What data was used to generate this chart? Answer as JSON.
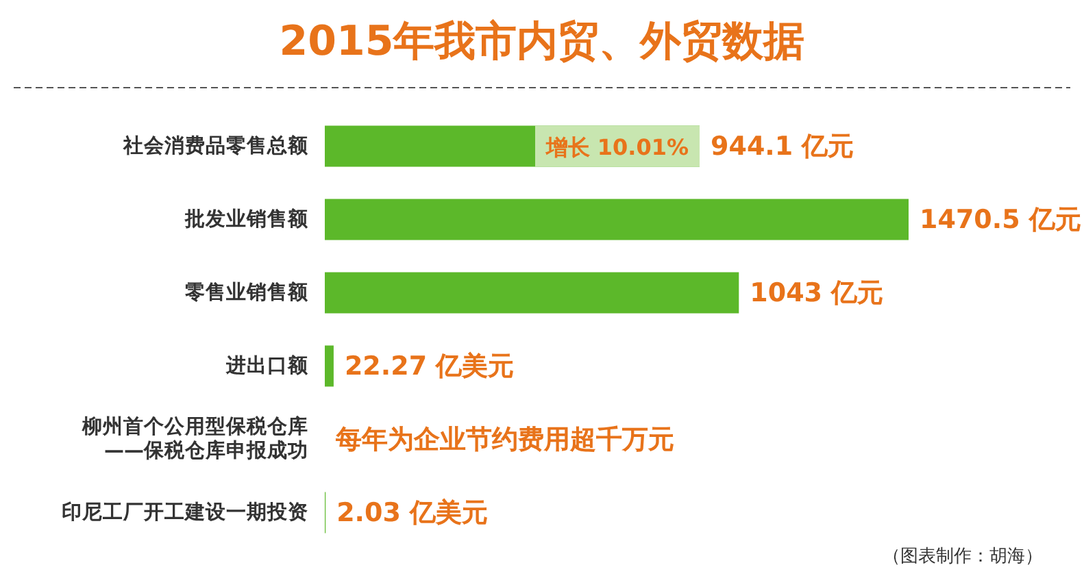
{
  "chart_data": {
    "type": "bar",
    "orientation": "horizontal",
    "title": "2015年我市内贸、外贸数据",
    "categories": [
      "社会消费品零售总额",
      "批发业销售额",
      "零售业销售额",
      "进出口额",
      "柳州首个公用型保税仓库\n——保税仓库申报成功",
      "印尼工厂开工建设一期投资"
    ],
    "series": [
      {
        "color": "#5cb82a",
        "values": [
          944.1,
          1470.5,
          1043,
          22.27,
          null,
          2.03
        ],
        "value_labels": [
          "944.1 亿元",
          "1470.5 亿元",
          "1043 亿元",
          "22.27 亿美元",
          "每年为企业节约费用超千万元",
          "2.03 亿美元"
        ]
      }
    ],
    "annotations": [
      "增长 10.01%",
      "（图表制作：胡海）"
    ]
  }
}
